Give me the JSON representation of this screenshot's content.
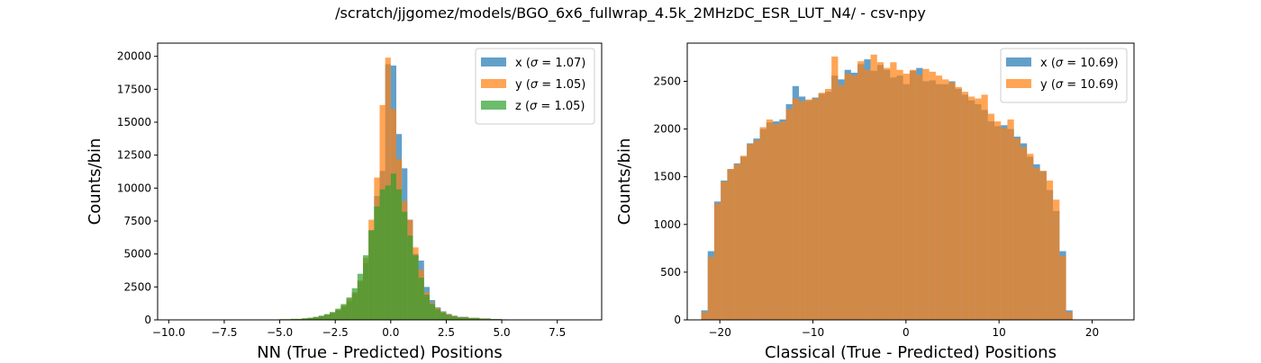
{
  "figure": {
    "suptitle": "/scratch/jjgomez/models/BGO_6x6_fullwrap_4.5k_2MHzDC_ESR_LUT_N4/ - csv-npy"
  },
  "colors": {
    "x": "#1f77b4",
    "y": "#ff7f0e",
    "z": "#2ca02c"
  },
  "chart_data": [
    {
      "type": "bar",
      "subtype": "histogram",
      "xlabel": "NN (True - Predicted) Positions",
      "ylabel": "Counts/bin",
      "xlim": [
        -10.5,
        9.5
      ],
      "ylim": [
        0,
        21000
      ],
      "xticks": [
        -10.0,
        -7.5,
        -5.0,
        -2.5,
        0.0,
        2.5,
        5.0,
        7.5
      ],
      "xticklabels": [
        "−10.0",
        "−7.5",
        "−5.0",
        "−2.5",
        "0.0",
        "2.5",
        "5.0",
        "7.5"
      ],
      "yticks": [
        0,
        2500,
        5000,
        7500,
        10000,
        12500,
        15000,
        17500,
        20000
      ],
      "yticklabels": [
        "0",
        "2500",
        "5000",
        "7500",
        "10000",
        "12500",
        "15000",
        "17500",
        "20000"
      ],
      "legend_position": "top-right",
      "opacity": 0.7,
      "series": [
        {
          "name": "x (σ = 1.07)",
          "name_prefix": "x (",
          "sigma_symbol": "σ",
          "name_suffix": " = 1.07)",
          "color_key": "x",
          "bins": [
            [
              -5.5,
              30
            ],
            [
              -5.0,
              40
            ],
            [
              -4.5,
              60
            ],
            [
              -4.0,
              100
            ],
            [
              -3.75,
              140
            ],
            [
              -3.5,
              200
            ],
            [
              -3.25,
              280
            ],
            [
              -3.0,
              380
            ],
            [
              -2.75,
              500
            ],
            [
              -2.5,
              700
            ],
            [
              -2.25,
              1000
            ],
            [
              -2.0,
              1400
            ],
            [
              -1.75,
              2000
            ],
            [
              -1.5,
              2900
            ],
            [
              -1.25,
              4300
            ],
            [
              -1.0,
              6800
            ],
            [
              -0.75,
              9400
            ],
            [
              -0.5,
              11300
            ],
            [
              -0.25,
              19400
            ],
            [
              0.0,
              19300
            ],
            [
              0.25,
              14100
            ],
            [
              0.5,
              11500
            ],
            [
              0.75,
              7600
            ],
            [
              1.0,
              5000
            ],
            [
              1.25,
              4500
            ],
            [
              1.5,
              2500
            ],
            [
              1.75,
              1500
            ],
            [
              2.0,
              950
            ],
            [
              2.25,
              650
            ],
            [
              2.5,
              450
            ],
            [
              2.75,
              320
            ],
            [
              3.0,
              230
            ],
            [
              3.5,
              160
            ],
            [
              4.0,
              110
            ],
            [
              4.5,
              70
            ],
            [
              5.0,
              40
            ]
          ],
          "width": 0.25
        },
        {
          "name": "y (σ = 1.05)",
          "name_prefix": "y (",
          "sigma_symbol": "σ",
          "name_suffix": " = 1.05)",
          "color_key": "y",
          "bins": [
            [
              -5.5,
              30
            ],
            [
              -5.0,
              50
            ],
            [
              -4.5,
              70
            ],
            [
              -4.0,
              110
            ],
            [
              -3.75,
              150
            ],
            [
              -3.5,
              210
            ],
            [
              -3.25,
              290
            ],
            [
              -3.0,
              400
            ],
            [
              -2.75,
              550
            ],
            [
              -2.5,
              780
            ],
            [
              -2.25,
              1100
            ],
            [
              -2.0,
              1600
            ],
            [
              -1.75,
              2100
            ],
            [
              -1.5,
              3000
            ],
            [
              -1.25,
              4700
            ],
            [
              -1.0,
              7600
            ],
            [
              -0.75,
              10800
            ],
            [
              -0.5,
              16300
            ],
            [
              -0.25,
              19900
            ],
            [
              0.0,
              16000
            ],
            [
              0.25,
              12200
            ],
            [
              0.5,
              9000
            ],
            [
              0.75,
              7600
            ],
            [
              1.0,
              5500
            ],
            [
              1.25,
              3800
            ],
            [
              1.5,
              2100
            ],
            [
              1.75,
              1300
            ],
            [
              2.0,
              900
            ],
            [
              2.25,
              600
            ],
            [
              2.5,
              420
            ],
            [
              2.75,
              300
            ],
            [
              3.0,
              220
            ],
            [
              3.5,
              150
            ],
            [
              4.0,
              100
            ],
            [
              4.5,
              60
            ],
            [
              5.0,
              35
            ]
          ],
          "width": 0.25
        },
        {
          "name": "z (σ = 1.05)",
          "name_prefix": "z (",
          "sigma_symbol": "σ",
          "name_suffix": " = 1.05)",
          "color_key": "z",
          "bins": [
            [
              -5.5,
              30
            ],
            [
              -5.0,
              50
            ],
            [
              -4.5,
              80
            ],
            [
              -4.0,
              120
            ],
            [
              -3.75,
              160
            ],
            [
              -3.5,
              230
            ],
            [
              -3.25,
              320
            ],
            [
              -3.0,
              440
            ],
            [
              -2.75,
              600
            ],
            [
              -2.5,
              850
            ],
            [
              -2.25,
              1200
            ],
            [
              -2.0,
              1700
            ],
            [
              -1.75,
              2400
            ],
            [
              -1.5,
              3500
            ],
            [
              -1.25,
              4900
            ],
            [
              -1.0,
              6800
            ],
            [
              -0.75,
              8600
            ],
            [
              -0.5,
              9900
            ],
            [
              -0.25,
              10200
            ],
            [
              0.0,
              11100
            ],
            [
              0.25,
              9900
            ],
            [
              0.5,
              8200
            ],
            [
              0.75,
              6400
            ],
            [
              1.0,
              4900
            ],
            [
              1.25,
              3200
            ],
            [
              1.5,
              1900
            ],
            [
              1.75,
              1200
            ],
            [
              2.0,
              800
            ],
            [
              2.25,
              550
            ],
            [
              2.5,
              380
            ],
            [
              2.75,
              270
            ],
            [
              3.0,
              190
            ],
            [
              3.5,
              130
            ],
            [
              4.0,
              90
            ],
            [
              4.5,
              55
            ],
            [
              5.0,
              30
            ]
          ],
          "width": 0.25
        }
      ]
    },
    {
      "type": "bar",
      "subtype": "histogram",
      "xlabel": "Classical (True - Predicted) Positions",
      "ylabel": "Counts/bin",
      "xlim": [
        -23.5,
        24.5
      ],
      "ylim": [
        0,
        2900
      ],
      "xticks": [
        -20,
        -10,
        0,
        10,
        20
      ],
      "xticklabels": [
        "−20",
        "−10",
        "0",
        "10",
        "20"
      ],
      "yticks": [
        0,
        500,
        1000,
        1500,
        2000,
        2500
      ],
      "yticklabels": [
        "0",
        "500",
        "1000",
        "1500",
        "2000",
        "2500"
      ],
      "legend_position": "top-right",
      "opacity": 0.7,
      "series": [
        {
          "name": "x (σ = 10.69)",
          "name_prefix": "x (",
          "sigma_symbol": "σ",
          "name_suffix": " = 10.69)",
          "color_key": "x",
          "bin_start": -22,
          "width": 0.7,
          "values": [
            100,
            720,
            1240,
            1460,
            1580,
            1640,
            1710,
            1850,
            1900,
            2000,
            2070,
            2080,
            2100,
            2260,
            2450,
            2340,
            2300,
            2330,
            2370,
            2390,
            2560,
            2520,
            2620,
            2590,
            2680,
            2730,
            2610,
            2670,
            2620,
            2540,
            2560,
            2470,
            2610,
            2640,
            2500,
            2510,
            2470,
            2470,
            2500,
            2420,
            2360,
            2300,
            2260,
            2200,
            2080,
            2030,
            2040,
            2000,
            1920,
            1850,
            1710,
            1630,
            1560,
            1360,
            1140,
            720,
            100
          ]
        },
        {
          "name": "y (σ = 10.69)",
          "name_prefix": "y (",
          "sigma_symbol": "σ",
          "name_suffix": " = 10.69)",
          "color_key": "y",
          "bin_start": -22,
          "width": 0.7,
          "values": [
            80,
            660,
            1220,
            1450,
            1580,
            1630,
            1720,
            1840,
            1880,
            2020,
            2100,
            2050,
            2080,
            2210,
            2320,
            2290,
            2310,
            2320,
            2380,
            2420,
            2760,
            2460,
            2580,
            2560,
            2710,
            2620,
            2780,
            2700,
            2640,
            2700,
            2620,
            2580,
            2620,
            2570,
            2630,
            2600,
            2560,
            2520,
            2490,
            2440,
            2390,
            2340,
            2320,
            2360,
            2160,
            2080,
            2010,
            2100,
            1900,
            1810,
            1740,
            1590,
            1560,
            1460,
            1260,
            670,
            80
          ]
        }
      ]
    }
  ]
}
